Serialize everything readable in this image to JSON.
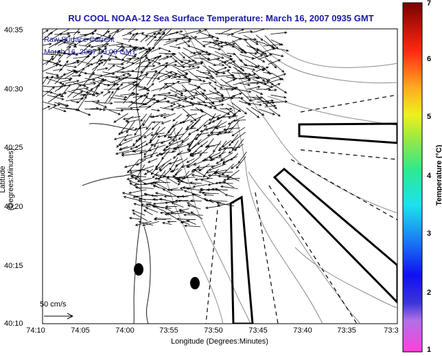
{
  "title": "RU COOL  NOAA-12  Sea Surface Temperature:  March 16, 2007 0935 GMT",
  "legend": {
    "line1": "Raw Surface Current",
    "line2": "March 16, 2007 09:00 GMT"
  },
  "scale_label": "50 cm/s",
  "axes": {
    "xlabel": "Longitude (Degrees:Minutes)",
    "ylabel": "Latitude (Degrees:Minutes)",
    "xticks": [
      "74:10",
      "74:05",
      "74:00",
      "73:55",
      "73:50",
      "73:45",
      "73:40",
      "73:35",
      "73:3"
    ],
    "yticks": [
      "40:35",
      "40:30",
      "40:25",
      "40:20",
      "40:15",
      "40:10"
    ]
  },
  "colorbar": {
    "label": "Temperature (°C)",
    "ticks": [
      "7",
      "6",
      "5",
      "4",
      "3",
      "2",
      "1"
    ],
    "range": [
      1,
      7
    ]
  },
  "colors": {
    "title": "#1a1aa6",
    "vectors": "#000000",
    "contours": "#8a8a8a"
  }
}
